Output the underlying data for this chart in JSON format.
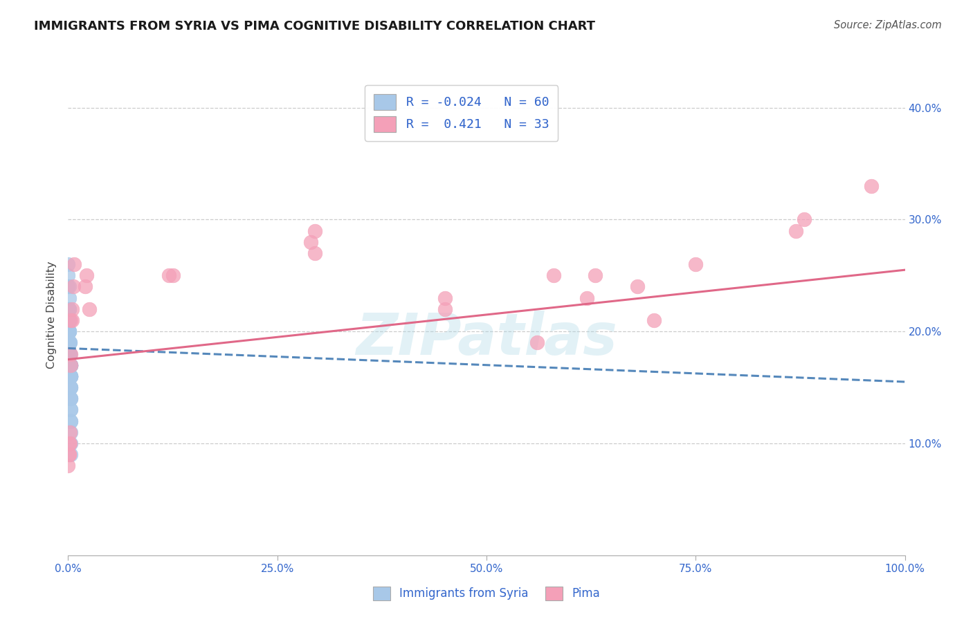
{
  "title": "IMMIGRANTS FROM SYRIA VS PIMA COGNITIVE DISABILITY CORRELATION CHART",
  "source": "Source: ZipAtlas.com",
  "ylabel": "Cognitive Disability",
  "watermark": "ZIPatlas",
  "series1_name": "Immigrants from Syria",
  "series1_color": "#a8c8e8",
  "series1_R": -0.024,
  "series1_N": 60,
  "series1_x": [
    0.0,
    0.0,
    0.0,
    0.001,
    0.001,
    0.001,
    0.001,
    0.001,
    0.001,
    0.001,
    0.001,
    0.001,
    0.001,
    0.001,
    0.001,
    0.001,
    0.001,
    0.002,
    0.002,
    0.002,
    0.002,
    0.002,
    0.002,
    0.002,
    0.002,
    0.002,
    0.002,
    0.002,
    0.002,
    0.002,
    0.002,
    0.003,
    0.003,
    0.003,
    0.003,
    0.003,
    0.003,
    0.003,
    0.003,
    0.003,
    0.003,
    0.003,
    0.003,
    0.003,
    0.003,
    0.003,
    0.003,
    0.003,
    0.003,
    0.003,
    0.003,
    0.003,
    0.003,
    0.003,
    0.003,
    0.003,
    0.003,
    0.003,
    0.003,
    0.003
  ],
  "series1_y": [
    0.26,
    0.25,
    0.24,
    0.24,
    0.23,
    0.22,
    0.22,
    0.21,
    0.21,
    0.21,
    0.2,
    0.2,
    0.2,
    0.2,
    0.19,
    0.19,
    0.19,
    0.19,
    0.19,
    0.18,
    0.18,
    0.18,
    0.18,
    0.18,
    0.18,
    0.18,
    0.18,
    0.17,
    0.17,
    0.17,
    0.17,
    0.17,
    0.17,
    0.17,
    0.17,
    0.17,
    0.17,
    0.17,
    0.17,
    0.16,
    0.16,
    0.16,
    0.16,
    0.16,
    0.16,
    0.16,
    0.16,
    0.15,
    0.15,
    0.15,
    0.14,
    0.14,
    0.14,
    0.13,
    0.13,
    0.12,
    0.12,
    0.11,
    0.1,
    0.09
  ],
  "series2_name": "Pima",
  "series2_color": "#f4a0b8",
  "series2_R": 0.421,
  "series2_N": 33,
  "series2_x": [
    0.0,
    0.001,
    0.001,
    0.001,
    0.002,
    0.002,
    0.003,
    0.003,
    0.003,
    0.005,
    0.005,
    0.006,
    0.007,
    0.02,
    0.022,
    0.025,
    0.12,
    0.125,
    0.29,
    0.295,
    0.295,
    0.45,
    0.45,
    0.56,
    0.58,
    0.62,
    0.63,
    0.68,
    0.7,
    0.75,
    0.87,
    0.88,
    0.96
  ],
  "series2_y": [
    0.08,
    0.09,
    0.09,
    0.1,
    0.1,
    0.11,
    0.17,
    0.18,
    0.21,
    0.21,
    0.22,
    0.24,
    0.26,
    0.24,
    0.25,
    0.22,
    0.25,
    0.25,
    0.28,
    0.27,
    0.29,
    0.22,
    0.23,
    0.19,
    0.25,
    0.23,
    0.25,
    0.24,
    0.21,
    0.26,
    0.29,
    0.3,
    0.33
  ],
  "trend1_x0": 0.0,
  "trend1_y0": 0.185,
  "trend1_x1": 1.0,
  "trend1_y1": 0.155,
  "trend2_x0": 0.0,
  "trend2_y0": 0.175,
  "trend2_x1": 1.0,
  "trend2_y1": 0.255,
  "trend1_color": "#5588bb",
  "trend2_color": "#e06888",
  "xlim": [
    0.0,
    1.0
  ],
  "ylim": [
    0.0,
    0.43
  ],
  "yticks": [
    0.1,
    0.2,
    0.3,
    0.4
  ],
  "ytick_labels": [
    "10.0%",
    "20.0%",
    "30.0%",
    "40.0%"
  ],
  "xticks": [
    0.0,
    0.25,
    0.5,
    0.75,
    1.0
  ],
  "xtick_labels": [
    "0.0%",
    "25.0%",
    "50.0%",
    "75.0%",
    "100.0%"
  ],
  "axis_color": "#3366cc",
  "background_color": "#ffffff",
  "grid_color": "#cccccc"
}
